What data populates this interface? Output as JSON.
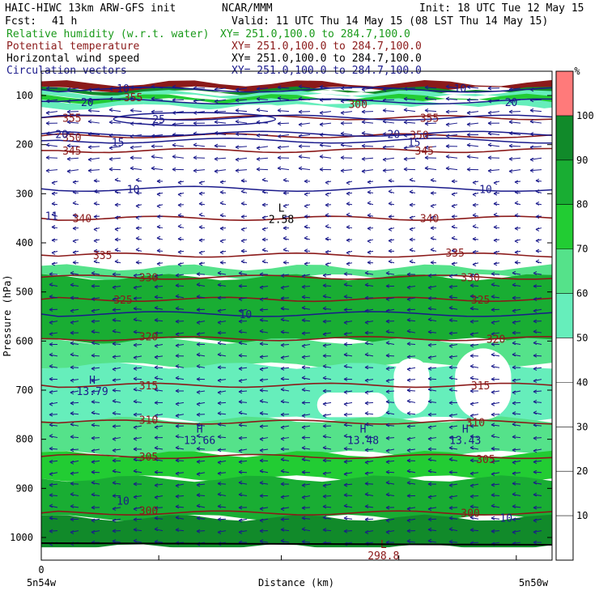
{
  "header": {
    "line1_left": "HAIC-HIWC 13km ARW-GFS init",
    "line1_center": "NCAR/MMM",
    "line1_right": "Init: 18 UTC Tue 12 May 15",
    "fcst_label": "Fcst:",
    "fcst_value": "41 h",
    "valid": "Valid: 11 UTC Thu 14 May 15 (08 LST Thu 14 May 15)",
    "fields": [
      {
        "name": "Relative humidity (w.r.t. water)",
        "xy": "XY= 251.0,100.0 to 284.7,100.0",
        "color": "#1a9a1a"
      },
      {
        "name": "Potential temperature",
        "xy": "XY= 251.0,100.0 to 284.7,100.0",
        "color": "#8b1a1a"
      },
      {
        "name": "Horizontal wind speed",
        "xy": "XY= 251.0,100.0 to 284.7,100.0",
        "color": "#000000"
      },
      {
        "name": "Circulation vectors",
        "xy": "XY= 251.0,100.0 to 284.7,100.0",
        "color": "#1a1a8b"
      }
    ]
  },
  "chart_data": {
    "type": "heatmap",
    "title": "HAIC-HIWC 13km ARW-GFS init",
    "xlabel": "Distance (km)",
    "ylabel": "Pressure (hPa)",
    "x_ticks": [
      "0"
    ],
    "x_end_labels": {
      "left": "5n54w",
      "right": "5n50w"
    },
    "ylim": [
      1050,
      75
    ],
    "y_ticks": [
      100,
      200,
      300,
      400,
      500,
      600,
      700,
      800,
      900,
      1000
    ],
    "colorbar": {
      "unit": "%",
      "ticks": [
        10,
        20,
        30,
        40,
        50,
        60,
        70,
        80,
        90,
        100
      ],
      "bands": [
        {
          "from": 0,
          "to": 50,
          "color": "#ffffff"
        },
        {
          "from": 50,
          "to": 60,
          "color": "#66eebb"
        },
        {
          "from": 60,
          "to": 70,
          "color": "#55e28a"
        },
        {
          "from": 70,
          "to": 80,
          "color": "#22cc33"
        },
        {
          "from": 80,
          "to": 90,
          "color": "#19ad33"
        },
        {
          "from": 90,
          "to": 100,
          "color": "#118a2a"
        },
        {
          "from": 100,
          "to": 110,
          "color": "#ff7a7a"
        }
      ]
    },
    "rh_layers": [
      {
        "p_top": 75,
        "p_bot": 88,
        "color": "#8b1a1a"
      },
      {
        "p_top": 88,
        "p_bot": 95,
        "color": "#118a2a"
      },
      {
        "p_top": 95,
        "p_bot": 103,
        "color": "#66eebb"
      },
      {
        "p_top": 103,
        "p_bot": 112,
        "color": "#22cc33"
      },
      {
        "p_top": 112,
        "p_bot": 124,
        "color": "#66eebb"
      },
      {
        "p_top": 124,
        "p_bot": 450,
        "color": "#ffffff"
      },
      {
        "p_top": 450,
        "p_bot": 470,
        "color": "#55e28a"
      },
      {
        "p_top": 470,
        "p_bot": 600,
        "color": "#19ad33"
      },
      {
        "p_top": 600,
        "p_bot": 650,
        "color": "#55e28a"
      },
      {
        "p_top": 650,
        "p_bot": 760,
        "color": "#66eebb"
      },
      {
        "p_top": 760,
        "p_bot": 830,
        "color": "#55e28a"
      },
      {
        "p_top": 830,
        "p_bot": 880,
        "color": "#22cc33"
      },
      {
        "p_top": 880,
        "p_bot": 960,
        "color": "#19ad33"
      },
      {
        "p_top": 960,
        "p_bot": 1020,
        "color": "#118a2a"
      }
    ],
    "theta_contours": [
      {
        "value": 355,
        "p": 145
      },
      {
        "value": 350,
        "p": 182
      },
      {
        "value": 345,
        "p": 212
      },
      {
        "value": 340,
        "p": 350
      },
      {
        "value": 335,
        "p": 425
      },
      {
        "value": 330,
        "p": 470
      },
      {
        "value": 325,
        "p": 515
      },
      {
        "value": 320,
        "p": 595
      },
      {
        "value": 315,
        "p": 690
      },
      {
        "value": 310,
        "p": 765
      },
      {
        "value": 305,
        "p": 835
      },
      {
        "value": 300,
        "p": 950
      }
    ],
    "theta_line_labels": [
      {
        "text": "355",
        "x": 0.06,
        "p": 145
      },
      {
        "text": "355",
        "x": 0.76,
        "p": 145
      },
      {
        "text": "350",
        "x": 0.06,
        "p": 185
      },
      {
        "text": "350",
        "x": 0.74,
        "p": 180
      },
      {
        "text": "345",
        "x": 0.06,
        "p": 212
      },
      {
        "text": "345",
        "x": 0.75,
        "p": 212
      },
      {
        "text": "340",
        "x": 0.08,
        "p": 350
      },
      {
        "text": "340",
        "x": 0.76,
        "p": 350
      },
      {
        "text": "335",
        "x": 0.12,
        "p": 425
      },
      {
        "text": "335",
        "x": 0.81,
        "p": 420
      },
      {
        "text": "330",
        "x": 0.21,
        "p": 470
      },
      {
        "text": "330",
        "x": 0.84,
        "p": 470
      },
      {
        "text": "325",
        "x": 0.16,
        "p": 515
      },
      {
        "text": "325",
        "x": 0.86,
        "p": 515
      },
      {
        "text": "320",
        "x": 0.21,
        "p": 590
      },
      {
        "text": "320",
        "x": 0.89,
        "p": 595
      },
      {
        "text": "315",
        "x": 0.21,
        "p": 690
      },
      {
        "text": "315",
        "x": 0.86,
        "p": 690
      },
      {
        "text": "310",
        "x": 0.21,
        "p": 760
      },
      {
        "text": "310",
        "x": 0.85,
        "p": 765
      },
      {
        "text": "305",
        "x": 0.21,
        "p": 835
      },
      {
        "text": "305",
        "x": 0.87,
        "p": 840
      },
      {
        "text": "300",
        "x": 0.21,
        "p": 945
      },
      {
        "text": "300",
        "x": 0.84,
        "p": 950
      }
    ],
    "wind_contours": [
      {
        "value": 10,
        "p": 88
      },
      {
        "value": 20,
        "p": 112
      },
      {
        "value": 25,
        "p": 145
      },
      {
        "value": 20,
        "p": 178
      },
      {
        "value": 15,
        "p": 192
      },
      {
        "value": 10,
        "p": 290
      },
      {
        "value": 10,
        "p": 545
      }
    ],
    "wind_line_labels": [
      {
        "text": "10",
        "x": 0.16,
        "p": 85
      },
      {
        "text": "10",
        "x": 0.82,
        "p": 85
      },
      {
        "text": "20",
        "x": 0.09,
        "p": 113
      },
      {
        "text": "20",
        "x": 0.92,
        "p": 113
      },
      {
        "text": "25",
        "x": 0.23,
        "p": 148
      },
      {
        "text": "20",
        "x": 0.04,
        "p": 178
      },
      {
        "text": "20",
        "x": 0.69,
        "p": 178
      },
      {
        "text": "15",
        "x": 0.15,
        "p": 195
      },
      {
        "text": "15",
        "x": 0.73,
        "p": 195
      },
      {
        "text": "10",
        "x": 0.18,
        "p": 290
      },
      {
        "text": "10",
        "x": 0.87,
        "p": 290
      },
      {
        "text": "11",
        "x": 0.02,
        "p": 345
      },
      {
        "text": "10",
        "x": 0.4,
        "p": 545
      },
      {
        "text": "10",
        "x": 0.16,
        "p": 925
      },
      {
        "text": "10",
        "x": 0.91,
        "p": 960
      }
    ],
    "rh_line_labels": [
      {
        "text": "300",
        "x": 0.62,
        "p": 117
      },
      {
        "text": "355",
        "x": 0.18,
        "p": 103
      }
    ],
    "extrema": [
      {
        "type": "L",
        "value": "2.58",
        "x": 0.47,
        "p": 340
      },
      {
        "type": "H",
        "value": "13.79",
        "x": 0.1,
        "p": 690
      },
      {
        "type": "H",
        "value": "13.66",
        "x": 0.31,
        "p": 790
      },
      {
        "type": "H",
        "value": "13.48",
        "x": 0.63,
        "p": 790
      },
      {
        "type": "H",
        "value": "13.43",
        "x": 0.83,
        "p": 790
      },
      {
        "type": "L",
        "value": "298.8",
        "x": 0.67,
        "p": 1025
      }
    ],
    "dry_pockets": [
      {
        "x0": 0.54,
        "x1": 0.68,
        "p0": 705,
        "p1": 755
      },
      {
        "x0": 0.69,
        "x1": 0.76,
        "p0": 635,
        "p1": 750
      },
      {
        "x0": 0.81,
        "x1": 0.92,
        "p0": 615,
        "p1": 760
      }
    ],
    "vectors": {
      "direction": "westward",
      "p_top": 85,
      "p_bot": 1010
    }
  },
  "colors": {
    "theta": "#8b1a1a",
    "wind": "#1a1a8b",
    "vector": "#1a1a8b",
    "terrain": "#000000"
  }
}
